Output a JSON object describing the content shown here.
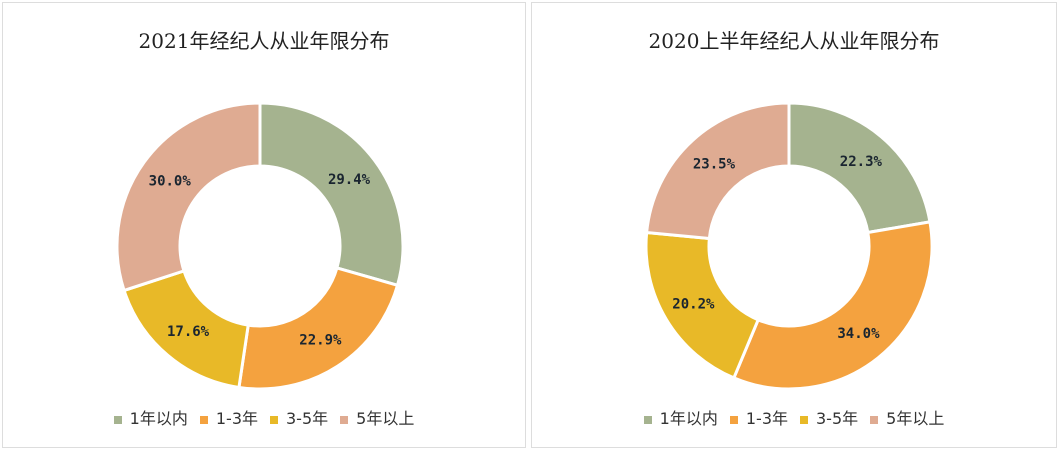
{
  "chart_data": [
    {
      "type": "pie",
      "donut": true,
      "title": "2021年经纪人从业年限分布",
      "categories": [
        "1年以内",
        "1-3年",
        "3-5年",
        "5年以上"
      ],
      "values": [
        29.4,
        22.9,
        17.6,
        30.0
      ],
      "labels": [
        "29.4%",
        "22.9%",
        "17.6%",
        "30.0%"
      ],
      "colors": [
        "#a5b38f",
        "#f4a23f",
        "#e8b928",
        "#dfab92"
      ],
      "legend": "bottom"
    },
    {
      "type": "pie",
      "donut": true,
      "title": "2020上半年经纪人从业年限分布",
      "categories": [
        "1年以内",
        "1-3年",
        "3-5年",
        "5年以上"
      ],
      "values": [
        22.3,
        34.0,
        20.2,
        23.5
      ],
      "labels": [
        "22.3%",
        "34.0%",
        "20.2%",
        "23.5%"
      ],
      "colors": [
        "#a5b38f",
        "#f4a23f",
        "#e8b928",
        "#dfab92"
      ],
      "legend": "bottom"
    }
  ]
}
